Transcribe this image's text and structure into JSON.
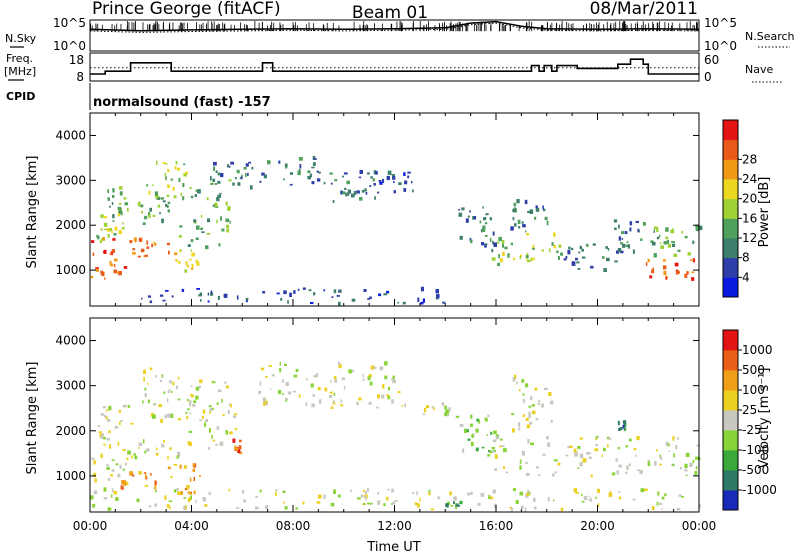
{
  "header": {
    "site": "Prince George (fitACF)",
    "beam": "Beam 01",
    "date": "08/Mar/2011"
  },
  "left_labels": {
    "nsky": "N.Sky",
    "freq_line1": "Freq.",
    "freq_line2": "[MHz]",
    "cpid": "CPID"
  },
  "right_labels": {
    "nsearch": "N.Search",
    "nave": "Nave"
  },
  "cpid_text": "normalsound (fast) -157",
  "chart_data": [
    {
      "type": "line",
      "panel": "noise",
      "yticks_left": [
        "10^5",
        "10^0"
      ],
      "yticks_right": [
        "10^5",
        "10^0"
      ],
      "series": [
        {
          "name": "N.Sky",
          "style": "solid"
        },
        {
          "name": "N.Search",
          "style": "dotted"
        }
      ],
      "x_hours": [
        0,
        2,
        4,
        6,
        8,
        10,
        12,
        14,
        15,
        16,
        17,
        18,
        20,
        22,
        24
      ],
      "y_rel": [
        0.7,
        0.65,
        0.68,
        0.7,
        0.72,
        0.7,
        0.72,
        0.75,
        0.9,
        0.95,
        0.8,
        0.72,
        0.7,
        0.72,
        0.7
      ]
    },
    {
      "type": "line",
      "panel": "frequency",
      "ylim_left": [
        8,
        18
      ],
      "yticks_left": [
        "18",
        "8"
      ],
      "ylim_right": [
        0,
        60
      ],
      "yticks_right": [
        "60",
        "0"
      ],
      "series": [
        {
          "name": "Freq.",
          "style": "solid",
          "steps": [
            [
              0,
              10.5
            ],
            [
              0.6,
              11.5
            ],
            [
              1.6,
              14.5
            ],
            [
              3.2,
              11.5
            ],
            [
              6.8,
              14.5
            ],
            [
              7.2,
              11.5
            ],
            [
              17.4,
              13.5
            ],
            [
              17.7,
              11.5
            ],
            [
              17.9,
              13.5
            ],
            [
              18.2,
              11.5
            ],
            [
              18.4,
              13.5
            ],
            [
              19.2,
              12.5
            ],
            [
              20.8,
              14.0
            ],
            [
              21.3,
              15.8
            ],
            [
              21.8,
              14.0
            ],
            [
              22.0,
              10.5
            ],
            [
              24,
              10.5
            ]
          ]
        },
        {
          "name": "Nave",
          "style": "dotted",
          "value": 12.7
        }
      ]
    },
    {
      "type": "heatmap",
      "panel": "power",
      "xlabel": "",
      "ylabel": "Slant Range [km]",
      "xlim_hours": [
        0,
        24
      ],
      "ylim": [
        200,
        4500
      ],
      "yticks": [
        1000,
        2000,
        3000,
        4000
      ],
      "colorbar": {
        "label": "Power [dB]",
        "ticks": [
          "4",
          "8",
          "12",
          "16",
          "20",
          "24",
          "28"
        ],
        "colors": [
          "#0a1ae0",
          "#2e3ea8",
          "#3d7f6c",
          "#4fa05a",
          "#9ed234",
          "#ecd820",
          "#f29a18",
          "#ea5a18",
          "#e41414"
        ]
      },
      "regions": [
        {
          "t0": 0.0,
          "t1": 1.4,
          "r0": 800,
          "r1": 1700,
          "c": 7
        },
        {
          "t0": 0.2,
          "t1": 1.6,
          "r0": 1600,
          "r1": 2400,
          "c": 4
        },
        {
          "t0": 0.5,
          "t1": 1.5,
          "r0": 2200,
          "r1": 2900,
          "c": 3
        },
        {
          "t0": 1.5,
          "t1": 3.5,
          "r0": 1300,
          "r1": 1700,
          "c": 6
        },
        {
          "t0": 1.7,
          "t1": 3.2,
          "r0": 2000,
          "r1": 2600,
          "c": 3
        },
        {
          "t0": 2.2,
          "t1": 3.8,
          "r0": 2600,
          "r1": 3400,
          "c": 4
        },
        {
          "t0": 3.3,
          "t1": 4.2,
          "r0": 900,
          "r1": 1500,
          "c": 5
        },
        {
          "t0": 3.5,
          "t1": 5.5,
          "r0": 1500,
          "r1": 3000,
          "c": 3
        },
        {
          "t0": 4.5,
          "t1": 6.5,
          "r0": 2700,
          "r1": 3400,
          "c": 2
        },
        {
          "t0": 6.6,
          "t1": 9.0,
          "r0": 2900,
          "r1": 3500,
          "c": 2
        },
        {
          "t0": 9.0,
          "t1": 11.2,
          "r0": 2500,
          "r1": 3300,
          "c": 2
        },
        {
          "t0": 11.0,
          "t1": 13.0,
          "r0": 2700,
          "r1": 3200,
          "c": 1
        },
        {
          "t0": 14.5,
          "t1": 16.0,
          "r0": 1400,
          "r1": 2500,
          "c": 2
        },
        {
          "t0": 15.6,
          "t1": 18.5,
          "r0": 1100,
          "r1": 1800,
          "c": 4
        },
        {
          "t0": 16.5,
          "t1": 18.0,
          "r0": 1800,
          "r1": 2600,
          "c": 2
        },
        {
          "t0": 18.5,
          "t1": 21.0,
          "r0": 1000,
          "r1": 1600,
          "c": 2
        },
        {
          "t0": 20.5,
          "t1": 22.0,
          "r0": 1400,
          "r1": 2100,
          "c": 2
        },
        {
          "t0": 21.8,
          "t1": 24.0,
          "r0": 800,
          "r1": 1300,
          "c": 7
        },
        {
          "t0": 22.0,
          "t1": 24.0,
          "r0": 1300,
          "r1": 2100,
          "c": 3
        },
        {
          "t0": 2.0,
          "t1": 14.0,
          "r0": 250,
          "r1": 600,
          "c": 1
        }
      ]
    },
    {
      "type": "heatmap",
      "panel": "velocity",
      "xlabel": "Time UT",
      "ylabel": "Slant Range [km]",
      "xlim_hours": [
        0,
        24
      ],
      "xticks": [
        "00:00",
        "04:00",
        "08:00",
        "12:00",
        "16:00",
        "20:00",
        "00:00"
      ],
      "ylim": [
        200,
        4500
      ],
      "yticks": [
        1000,
        2000,
        3000,
        4000
      ],
      "colorbar": {
        "label": "Velocity [m s⁻¹]",
        "ticks": [
          "1000",
          "500",
          "100",
          "25",
          "-25",
          "-100",
          "-500",
          "-1000"
        ],
        "colors": [
          "#1a2ab8",
          "#2e7a66",
          "#3aa83a",
          "#88d438",
          "#c8c8c0",
          "#ecd020",
          "#f0a018",
          "#ea6018",
          "#e21414"
        ]
      },
      "regions": [
        {
          "t0": 0.0,
          "t1": 1.5,
          "r0": 900,
          "r1": 1900,
          "c": 4
        },
        {
          "t0": 1.5,
          "t1": 3.5,
          "r0": 1400,
          "r1": 1800,
          "c": 4
        },
        {
          "t0": 0.3,
          "t1": 1.6,
          "r0": 1800,
          "r1": 2600,
          "c": 4
        },
        {
          "t0": 2.0,
          "t1": 4.0,
          "r0": 2200,
          "r1": 3400,
          "c": 4
        },
        {
          "t0": 3.8,
          "t1": 5.8,
          "r0": 1600,
          "r1": 3100,
          "c": 4
        },
        {
          "t0": 6.6,
          "t1": 12.5,
          "r0": 2500,
          "r1": 3500,
          "c": 4
        },
        {
          "t0": 13.0,
          "t1": 14.5,
          "r0": 2300,
          "r1": 2600,
          "c": 4
        },
        {
          "t0": 14.5,
          "t1": 16.0,
          "r0": 1400,
          "r1": 2400,
          "c": 3
        },
        {
          "t0": 15.8,
          "t1": 24.0,
          "r0": 1000,
          "r1": 1900,
          "c": 4
        },
        {
          "t0": 16.5,
          "t1": 18.2,
          "r0": 2000,
          "r1": 3200,
          "c": 4
        },
        {
          "t0": 1.0,
          "t1": 2.6,
          "r0": 700,
          "r1": 1100,
          "c": 6
        },
        {
          "t0": 3.0,
          "t1": 4.3,
          "r0": 600,
          "r1": 1300,
          "c": 6
        },
        {
          "t0": 5.6,
          "t1": 5.9,
          "r0": 1500,
          "r1": 1800,
          "c": 7
        },
        {
          "t0": 13.6,
          "t1": 14.6,
          "r0": 300,
          "r1": 420,
          "c": 2
        },
        {
          "t0": 20.8,
          "t1": 21.1,
          "r0": 2000,
          "r1": 2200,
          "c": 1
        },
        {
          "t0": 0.0,
          "t1": 24.0,
          "r0": 250,
          "r1": 700,
          "c": 4
        }
      ]
    }
  ]
}
